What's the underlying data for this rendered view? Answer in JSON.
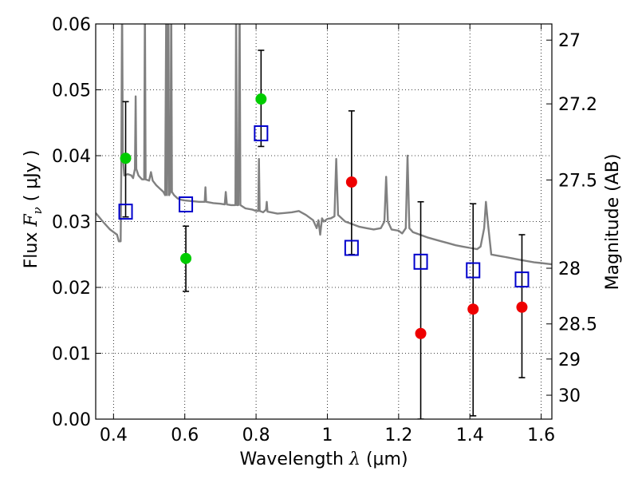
{
  "chart_data": {
    "type": "scatter",
    "xlabel": "Wavelength",
    "xlabel_symbol": "λ",
    "xlabel_unit": "(μm)",
    "ylabel": "Flux",
    "ylabel_symbol": "F",
    "ylabel_subscript": "ν",
    "ylabel_unit": "( μJy )",
    "y2label": "Magnitude (AB)",
    "xlim": [
      0.35,
      1.63
    ],
    "ylim": [
      0.0,
      0.06
    ],
    "grid": true,
    "grid_style": "dotted",
    "x_ticks": [
      {
        "value": 0.4,
        "label": "0.4"
      },
      {
        "value": 0.6,
        "label": "0.6"
      },
      {
        "value": 0.8,
        "label": "0.8"
      },
      {
        "value": 1.0,
        "label": "1"
      },
      {
        "value": 1.2,
        "label": "1.2"
      },
      {
        "value": 1.4,
        "label": "1.4"
      },
      {
        "value": 1.6,
        "label": "1.6"
      }
    ],
    "y_ticks": [
      {
        "value": 0.0,
        "label": "0.00"
      },
      {
        "value": 0.01,
        "label": "0.01"
      },
      {
        "value": 0.02,
        "label": "0.02"
      },
      {
        "value": 0.03,
        "label": "0.03"
      },
      {
        "value": 0.04,
        "label": "0.04"
      },
      {
        "value": 0.05,
        "label": "0.05"
      },
      {
        "value": 0.06,
        "label": "0.06"
      }
    ],
    "y2_ticks": [
      {
        "magnitude": 27,
        "label": "27"
      },
      {
        "magnitude": 27.2,
        "label": "27.2"
      },
      {
        "magnitude": 27.5,
        "label": "27.5"
      },
      {
        "magnitude": 28,
        "label": "28"
      },
      {
        "magnitude": 28.5,
        "label": "28.5"
      },
      {
        "magnitude": 29,
        "label": "29"
      },
      {
        "magnitude": 30,
        "label": "30"
      }
    ],
    "series": [
      {
        "color": "#808080",
        "kind": "line",
        "points": [
          [
            0.35,
            0.0313
          ],
          [
            0.37,
            0.03
          ],
          [
            0.39,
            0.0288
          ],
          [
            0.41,
            0.028
          ],
          [
            0.415,
            0.027
          ],
          [
            0.42,
            0.027
          ],
          [
            0.422,
            0.04
          ],
          [
            0.424,
            0.064
          ],
          [
            0.426,
            0.04
          ],
          [
            0.43,
            0.037
          ],
          [
            0.44,
            0.0372
          ],
          [
            0.45,
            0.037
          ],
          [
            0.455,
            0.0366
          ],
          [
            0.46,
            0.038
          ],
          [
            0.462,
            0.049
          ],
          [
            0.464,
            0.038
          ],
          [
            0.47,
            0.037
          ],
          [
            0.48,
            0.0364
          ],
          [
            0.486,
            0.0364
          ],
          [
            0.488,
            0.064
          ],
          [
            0.49,
            0.0364
          ],
          [
            0.5,
            0.0362
          ],
          [
            0.505,
            0.0375
          ],
          [
            0.51,
            0.0362
          ],
          [
            0.52,
            0.0355
          ],
          [
            0.53,
            0.035
          ],
          [
            0.54,
            0.0345
          ],
          [
            0.545,
            0.034
          ],
          [
            0.548,
            0.064
          ],
          [
            0.55,
            0.034
          ],
          [
            0.554,
            0.064
          ],
          [
            0.556,
            0.034
          ],
          [
            0.56,
            0.0345
          ],
          [
            0.562,
            0.064
          ],
          [
            0.564,
            0.0345
          ],
          [
            0.57,
            0.034
          ],
          [
            0.58,
            0.0335
          ],
          [
            0.59,
            0.0333
          ],
          [
            0.6,
            0.0332
          ],
          [
            0.62,
            0.0331
          ],
          [
            0.64,
            0.033
          ],
          [
            0.656,
            0.033
          ],
          [
            0.658,
            0.0352
          ],
          [
            0.66,
            0.033
          ],
          [
            0.68,
            0.0328
          ],
          [
            0.7,
            0.0327
          ],
          [
            0.712,
            0.0326
          ],
          [
            0.715,
            0.0345
          ],
          [
            0.718,
            0.0326
          ],
          [
            0.73,
            0.0325
          ],
          [
            0.742,
            0.0325
          ],
          [
            0.744,
            0.064
          ],
          [
            0.746,
            0.0325
          ],
          [
            0.75,
            0.0325
          ],
          [
            0.754,
            0.064
          ],
          [
            0.756,
            0.0325
          ],
          [
            0.77,
            0.032
          ],
          [
            0.79,
            0.0318
          ],
          [
            0.8,
            0.0316
          ],
          [
            0.806,
            0.0316
          ],
          [
            0.808,
            0.0395
          ],
          [
            0.81,
            0.0316
          ],
          [
            0.82,
            0.0314
          ],
          [
            0.828,
            0.0318
          ],
          [
            0.83,
            0.033
          ],
          [
            0.832,
            0.0315
          ],
          [
            0.86,
            0.0312
          ],
          [
            0.88,
            0.0313
          ],
          [
            0.9,
            0.0314
          ],
          [
            0.92,
            0.0316
          ],
          [
            0.94,
            0.031
          ],
          [
            0.96,
            0.0302
          ],
          [
            0.97,
            0.029
          ],
          [
            0.975,
            0.0302
          ],
          [
            0.98,
            0.028
          ],
          [
            0.985,
            0.0305
          ],
          [
            0.99,
            0.03
          ],
          [
            1.0,
            0.0304
          ],
          [
            1.01,
            0.0305
          ],
          [
            1.02,
            0.0308
          ],
          [
            1.025,
            0.0395
          ],
          [
            1.03,
            0.031
          ],
          [
            1.05,
            0.03
          ],
          [
            1.07,
            0.0296
          ],
          [
            1.09,
            0.0292
          ],
          [
            1.11,
            0.029
          ],
          [
            1.13,
            0.0288
          ],
          [
            1.15,
            0.029
          ],
          [
            1.16,
            0.03
          ],
          [
            1.165,
            0.0368
          ],
          [
            1.17,
            0.03
          ],
          [
            1.18,
            0.0288
          ],
          [
            1.2,
            0.0286
          ],
          [
            1.21,
            0.0282
          ],
          [
            1.22,
            0.029
          ],
          [
            1.225,
            0.04
          ],
          [
            1.23,
            0.029
          ],
          [
            1.24,
            0.0284
          ],
          [
            1.26,
            0.028
          ],
          [
            1.28,
            0.0276
          ],
          [
            1.3,
            0.0273
          ],
          [
            1.32,
            0.027
          ],
          [
            1.34,
            0.0267
          ],
          [
            1.36,
            0.0264
          ],
          [
            1.38,
            0.0262
          ],
          [
            1.4,
            0.026
          ],
          [
            1.42,
            0.0258
          ],
          [
            1.43,
            0.0262
          ],
          [
            1.44,
            0.029
          ],
          [
            1.445,
            0.033
          ],
          [
            1.45,
            0.03
          ],
          [
            1.46,
            0.025
          ],
          [
            1.48,
            0.0248
          ],
          [
            1.5,
            0.0246
          ],
          [
            1.52,
            0.0244
          ],
          [
            1.54,
            0.0242
          ],
          [
            1.56,
            0.024
          ],
          [
            1.58,
            0.0238
          ],
          [
            1.6,
            0.0237
          ],
          [
            1.63,
            0.0235
          ]
        ]
      },
      {
        "color": "#0000cc",
        "kind": "scatter",
        "marker": "open-square",
        "points": [
          [
            0.434,
            0.0315
          ],
          [
            0.603,
            0.0326
          ],
          [
            0.814,
            0.0434
          ],
          [
            1.068,
            0.026
          ],
          [
            1.262,
            0.0239
          ],
          [
            1.409,
            0.0226
          ],
          [
            1.546,
            0.0212
          ]
        ]
      },
      {
        "color": "#00cc00",
        "kind": "scatter",
        "marker": "filled-circle",
        "points": [
          [
            0.434,
            0.0396
          ],
          [
            0.603,
            0.0244
          ],
          [
            0.814,
            0.0486
          ]
        ]
      },
      {
        "color": "#ee0000",
        "kind": "scatter",
        "marker": "filled-circle",
        "points": [
          [
            1.068,
            0.036
          ],
          [
            1.262,
            0.013
          ],
          [
            1.409,
            0.0167
          ],
          [
            1.546,
            0.017
          ]
        ]
      }
    ],
    "error_bars": [
      {
        "x": 0.434,
        "low": 0.0307,
        "high": 0.0482
      },
      {
        "x": 0.603,
        "low": 0.0194,
        "high": 0.0293
      },
      {
        "x": 0.814,
        "low": 0.0414,
        "high": 0.056
      },
      {
        "x": 1.068,
        "low": 0.025,
        "high": 0.0468
      },
      {
        "x": 1.262,
        "low": 0.0,
        "high": 0.033
      },
      {
        "x": 1.409,
        "low": 0.0005,
        "high": 0.0327
      },
      {
        "x": 1.546,
        "low": 0.0063,
        "high": 0.028
      }
    ]
  }
}
